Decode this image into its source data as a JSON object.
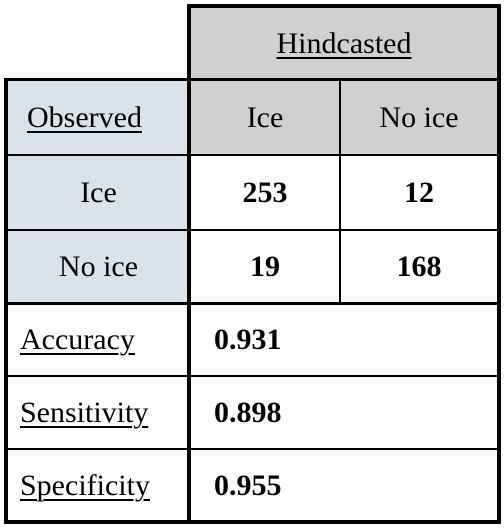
{
  "table": {
    "header": {
      "group_label": "Hindcasted",
      "row_axis_label": "Observed",
      "col_ice": "Ice",
      "col_no_ice": "No ice"
    },
    "rows": [
      {
        "label": "Ice",
        "ice": "253",
        "no_ice": "12"
      },
      {
        "label": "No ice",
        "ice": "19",
        "no_ice": "168"
      }
    ],
    "metrics": [
      {
        "label": "Accuracy",
        "value": "0.931"
      },
      {
        "label": "Sensitivity",
        "value": "0.898"
      },
      {
        "label": "Specificity",
        "value": "0.955"
      }
    ]
  },
  "colors": {
    "header_grey": "#d0d0d0",
    "label_blue": "#dae3e9",
    "border": "#000000"
  }
}
